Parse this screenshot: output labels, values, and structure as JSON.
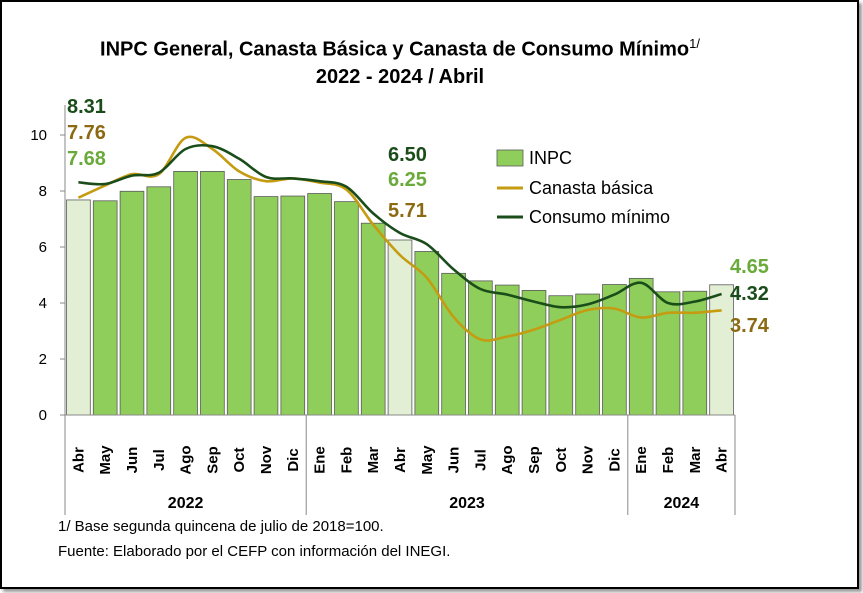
{
  "title_line1": "INPC General, Canasta Básica  y Canasta de Consumo Mínimo",
  "title_sup": "1/",
  "title_line2": "2022 - 2024 / Abril",
  "footnote": "1/ Base segunda quincena de julio de 2018=100.",
  "source": "Fuente: Elaborado por el CEFP con información del INEGI.",
  "chart_data": {
    "type": "bar",
    "categories": [
      "Abr",
      "May",
      "Jun",
      "Jul",
      "Ago",
      "Sep",
      "Oct",
      "Nov",
      "Dic",
      "Ene",
      "Feb",
      "Mar",
      "Abr",
      "May",
      "Jun",
      "Jul",
      "Ago",
      "Sep",
      "Oct",
      "Nov",
      "Dic",
      "Ene",
      "Feb",
      "Mar",
      "Abr"
    ],
    "years": [
      {
        "label": "2022",
        "start": 0,
        "end": 8
      },
      {
        "label": "2023",
        "start": 9,
        "end": 20
      },
      {
        "label": "2024",
        "start": 21,
        "end": 24
      }
    ],
    "ylim": [
      0,
      10
    ],
    "yticks": [
      0,
      2,
      4,
      6,
      8,
      10
    ],
    "series": [
      {
        "name": "INPC",
        "type": "bar",
        "color": "#8fce5a",
        "highlight_color": "#e3efd5",
        "highlight": [
          0,
          12,
          24
        ],
        "values": [
          7.68,
          7.65,
          7.99,
          8.15,
          8.7,
          8.7,
          8.41,
          7.8,
          7.82,
          7.91,
          7.62,
          6.85,
          6.25,
          5.84,
          5.06,
          4.79,
          4.64,
          4.45,
          4.26,
          4.32,
          4.66,
          4.88,
          4.4,
          4.42,
          4.65
        ]
      },
      {
        "name": "Canasta básica",
        "type": "line",
        "color": "#c59b12",
        "values": [
          7.76,
          8.2,
          8.6,
          8.6,
          9.9,
          9.5,
          8.7,
          8.35,
          8.45,
          8.3,
          8.05,
          6.8,
          5.71,
          4.9,
          3.5,
          2.7,
          2.8,
          3.05,
          3.4,
          3.75,
          3.8,
          3.48,
          3.65,
          3.65,
          3.74
        ]
      },
      {
        "name": "Consumo mínimo",
        "type": "line",
        "color": "#1b4d1b",
        "values": [
          8.31,
          8.25,
          8.55,
          8.65,
          9.5,
          9.6,
          9.15,
          8.5,
          8.45,
          8.35,
          8.15,
          7.2,
          6.5,
          6.1,
          5.2,
          4.5,
          4.3,
          4.05,
          3.85,
          3.95,
          4.3,
          4.72,
          4.0,
          4.05,
          4.32
        ]
      }
    ],
    "annotations": [
      {
        "text": "8.31",
        "series": "Consumo mínimo",
        "color": "#1b4d1b"
      },
      {
        "text": "7.76",
        "series": "Canasta básica",
        "color": "#8b6a12"
      },
      {
        "text": "7.68",
        "series": "INPC",
        "color": "#6aaa3a"
      },
      {
        "text": "6.50",
        "series": "Consumo mínimo",
        "color": "#1b4d1b"
      },
      {
        "text": "6.25",
        "series": "INPC",
        "color": "#6aaa3a"
      },
      {
        "text": "5.71",
        "series": "Canasta básica",
        "color": "#8b6a12"
      },
      {
        "text": "4.65",
        "series": "INPC",
        "color": "#6aaa3a"
      },
      {
        "text": "4.32",
        "series": "Consumo mínimo",
        "color": "#1b4d1b"
      },
      {
        "text": "3.74",
        "series": "Canasta básica",
        "color": "#8b6a12"
      }
    ],
    "legend": [
      "INPC",
      "Canasta básica",
      "Consumo mínimo"
    ]
  }
}
